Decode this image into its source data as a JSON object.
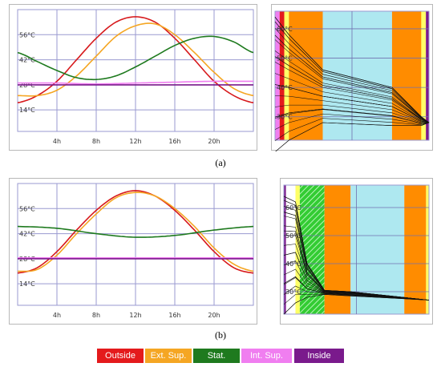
{
  "captions": {
    "a": "(a)",
    "b": "(b)"
  },
  "legend": [
    {
      "label": "Outside",
      "color": "#e41a1c"
    },
    {
      "label": "Ext. Sup.",
      "color": "#f5a623"
    },
    {
      "label": "Stat.",
      "color": "#1e7a1e"
    },
    {
      "label": "Int. Sup.",
      "color": "#f07ef0"
    },
    {
      "label": "Inside",
      "color": "#7a1a8c"
    }
  ],
  "chart_data": [
    {
      "panel": "a-left",
      "type": "line",
      "x_ticks": [
        "4h",
        "8h",
        "12h",
        "16h",
        "20h"
      ],
      "y_ticks": [
        "14°C",
        "28°C",
        "42°C",
        "56°C"
      ],
      "xlim": [
        0,
        24
      ],
      "ylim": [
        2,
        70
      ],
      "series": [
        {
          "name": "Outside",
          "color": "#d7191c",
          "x": [
            0,
            2,
            4,
            6,
            8,
            10,
            12,
            14,
            16,
            18,
            20,
            22,
            24
          ],
          "y": [
            18,
            22,
            30,
            42,
            54,
            63,
            66,
            63,
            54,
            42,
            30,
            22,
            18
          ]
        },
        {
          "name": "Ext. Sup.",
          "color": "#f5a623",
          "x": [
            0,
            2,
            4,
            6,
            8,
            10,
            12,
            14,
            16,
            18,
            20,
            22,
            24
          ],
          "y": [
            22,
            22,
            25,
            33,
            44,
            55,
            61,
            62,
            56,
            46,
            35,
            26,
            22
          ]
        },
        {
          "name": "Stat.",
          "color": "#1e7a1e",
          "x": [
            0,
            2,
            4,
            6,
            8,
            10,
            12,
            14,
            16,
            18,
            20,
            22,
            24
          ],
          "y": [
            46,
            41,
            36,
            32,
            31,
            33,
            38,
            44,
            50,
            54,
            55,
            52,
            46
          ]
        },
        {
          "name": "Int. Sup.",
          "color": "#f07ef0",
          "x": [
            0,
            4,
            8,
            12,
            16,
            20,
            24
          ],
          "y": [
            29,
            29,
            28.5,
            29,
            29.5,
            30,
            30
          ]
        },
        {
          "name": "Inside",
          "color": "#7a1a8c",
          "x": [
            0,
            4,
            8,
            12,
            16,
            20,
            24
          ],
          "y": [
            28,
            28,
            28,
            28,
            28,
            28,
            28
          ]
        }
      ]
    },
    {
      "panel": "a-right",
      "type": "area",
      "y_ticks": [
        "30°C",
        "40°C",
        "50°C",
        "60°C"
      ],
      "ylim": [
        22,
        66
      ],
      "layers": [
        {
          "color": "#f07ef0",
          "from": 0,
          "to": 0.03
        },
        {
          "color": "#e41a1c",
          "from": 0.03,
          "to": 0.06
        },
        {
          "color": "#ffff66",
          "from": 0.06,
          "to": 0.09
        },
        {
          "color": "#ff8c00",
          "from": 0.09,
          "to": 0.31
        },
        {
          "color": "#aee8f0",
          "from": 0.31,
          "to": 0.76
        },
        {
          "color": "#ff8c00",
          "from": 0.76,
          "to": 0.95
        },
        {
          "color": "#ffff66",
          "from": 0.95,
          "to": 0.98
        },
        {
          "color": "#7a1a8c",
          "from": 0.98,
          "to": 1.0
        }
      ],
      "profiles": {
        "x": [
          0,
          0.09,
          0.31,
          0.76,
          0.95,
          1.0
        ],
        "hot": [
          64,
          58,
          46,
          40,
          30,
          28
        ],
        "cold": [
          18,
          22,
          28,
          27,
          27,
          28
        ],
        "count": 13
      }
    },
    {
      "panel": "b-left",
      "type": "line",
      "x_ticks": [
        "4h",
        "8h",
        "12h",
        "16h",
        "20h"
      ],
      "y_ticks": [
        "14°C",
        "28°C",
        "42°C",
        "56°C"
      ],
      "xlim": [
        0,
        24
      ],
      "ylim": [
        2,
        70
      ],
      "series": [
        {
          "name": "Outside",
          "color": "#d7191c",
          "x": [
            0,
            2,
            4,
            6,
            8,
            10,
            12,
            14,
            16,
            18,
            20,
            22,
            24
          ],
          "y": [
            20,
            23,
            32,
            44,
            55,
            63,
            66,
            63,
            55,
            44,
            32,
            23,
            20
          ]
        },
        {
          "name": "Ext. Sup.",
          "color": "#f5a623",
          "x": [
            0,
            2,
            4,
            6,
            8,
            10,
            12,
            14,
            16,
            18,
            20,
            22,
            24
          ],
          "y": [
            21,
            22,
            30,
            42,
            53,
            62,
            65,
            63,
            56,
            46,
            34,
            25,
            21
          ]
        },
        {
          "name": "Stat.",
          "color": "#1e7a1e",
          "x": [
            0,
            4,
            8,
            12,
            16,
            20,
            24
          ],
          "y": [
            46,
            45,
            42,
            40,
            41,
            44,
            46
          ]
        },
        {
          "name": "Int. Sup.",
          "color": "#f07ef0",
          "x": [
            0,
            4,
            8,
            12,
            16,
            20,
            24
          ],
          "y": [
            28.5,
            28.5,
            28.5,
            28.5,
            28.5,
            28.5,
            28.5
          ]
        },
        {
          "name": "Inside",
          "color": "#7a1a8c",
          "x": [
            0,
            4,
            8,
            12,
            16,
            20,
            24
          ],
          "y": [
            28,
            28,
            28,
            28,
            28,
            28,
            28
          ]
        }
      ]
    },
    {
      "panel": "b-right",
      "type": "area",
      "y_ticks": [
        "30°C",
        "40°C",
        "50°C",
        "60°C"
      ],
      "ylim": [
        22,
        68
      ],
      "layers": [
        {
          "color": "#7a1a8c",
          "from": 0,
          "to": 0.015
        },
        {
          "color": "#ffffff",
          "from": 0.015,
          "to": 0.08
        },
        {
          "color": "#ffff66",
          "from": 0.08,
          "to": 0.11
        },
        {
          "color": "#33cc33",
          "from": 0.11,
          "to": 0.28,
          "hatch": true
        },
        {
          "color": "#ff8c00",
          "from": 0.28,
          "to": 0.46
        },
        {
          "color": "#aee8f0",
          "from": 0.46,
          "to": 0.83
        },
        {
          "color": "#ff8c00",
          "from": 0.83,
          "to": 0.98
        },
        {
          "color": "#ffff66",
          "from": 0.98,
          "to": 1.0
        }
      ],
      "profiles": {
        "x": [
          0,
          0.08,
          0.16,
          0.28,
          0.46,
          1.0
        ],
        "hot": [
          64,
          62,
          40,
          30.5,
          30,
          27
        ],
        "cold": [
          22,
          26,
          28,
          29,
          28.5,
          27
        ],
        "count": 13
      }
    }
  ]
}
